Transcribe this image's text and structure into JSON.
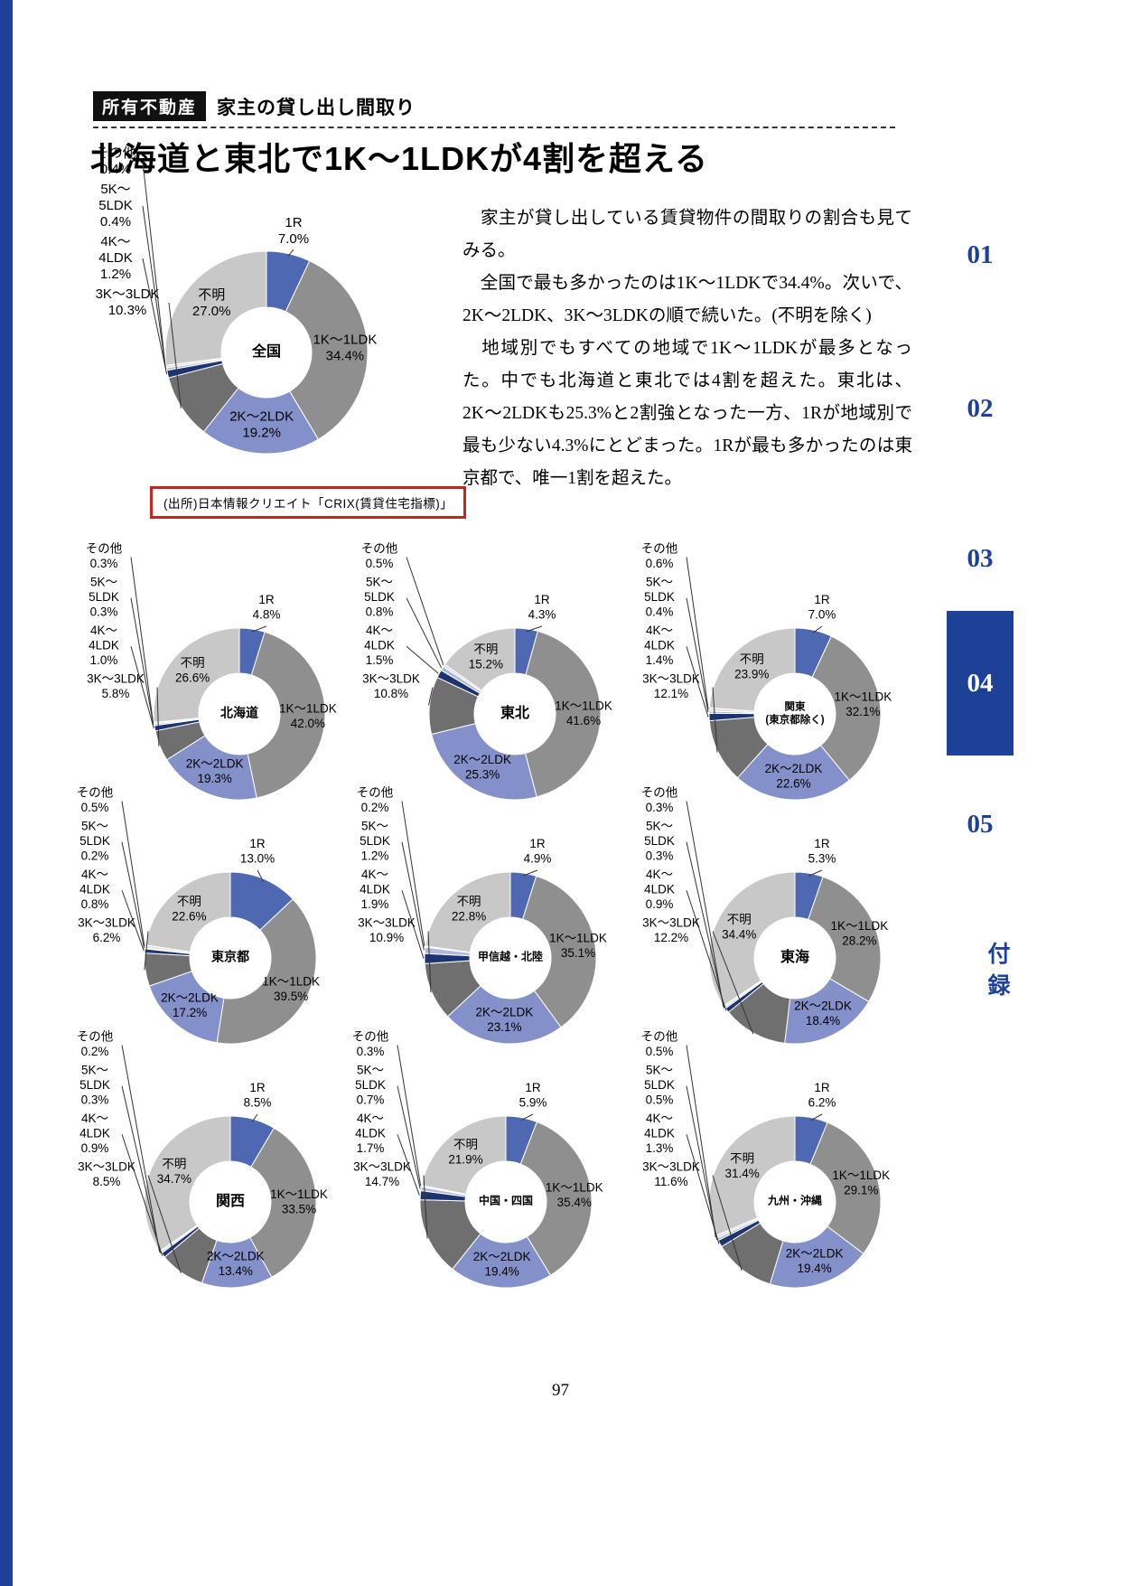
{
  "header": {
    "badge": "所有不動産",
    "subtitle": "家主の貸し出し間取り",
    "title": "北海道と東北で1K〜1LDKが4割を超える"
  },
  "source_note": "(出所)日本情報クリエイト「CRIX(賃貸住宅指標)」",
  "body_paragraphs": [
    "　家主が貸し出している賃貸物件の間取りの割合も見てみる。",
    "　全国で最も多かったのは1K〜1LDKで34.4%。次いで、2K〜2LDK、3K〜3LDKの順で続いた。(不明を除く)",
    "　地域別でもすべての地域で1K〜1LDKが最多となった。中でも北海道と東北では4割を超えた。東北は、2K〜2LDKも25.3%と2割強となった一方、1Rが地域別で最も少ない4.3%にとどまった。1Rが最も多かったのは東京都で、唯一1割を超えた。"
  ],
  "side_nav": {
    "items": [
      "01",
      "02",
      "03",
      "04",
      "05",
      "付録"
    ],
    "active": "04"
  },
  "page_number": "97",
  "chart_data": {
    "type": "pie",
    "subtype": "donut",
    "unit": "%",
    "legend_position": "none",
    "categories": [
      "1R",
      "1K〜1LDK",
      "2K〜2LDK",
      "3K〜3LDK",
      "4K〜4LDK",
      "5K〜5LDK",
      "その他",
      "不明"
    ],
    "colors": [
      "#4e68b1",
      "#8f8f8f",
      "#8490c9",
      "#6f6f6f",
      "#1d3473",
      "#b0bbdc",
      "#e2e2e2",
      "#c8c8c8"
    ],
    "charts": [
      {
        "name": "全国",
        "values": [
          7.0,
          34.4,
          19.2,
          10.3,
          1.2,
          0.4,
          0.4,
          27.0
        ]
      },
      {
        "name": "北海道",
        "values": [
          4.8,
          42.0,
          19.3,
          5.8,
          1.0,
          0.3,
          0.3,
          26.6
        ]
      },
      {
        "name": "東北",
        "values": [
          4.3,
          41.6,
          25.3,
          10.8,
          1.5,
          0.8,
          0.5,
          15.2
        ]
      },
      {
        "name": "関東(東京都除く)",
        "values": [
          7.0,
          32.1,
          22.6,
          12.1,
          1.4,
          0.4,
          0.6,
          23.9
        ]
      },
      {
        "name": "東京都",
        "values": [
          13.0,
          39.5,
          17.2,
          6.2,
          0.8,
          0.2,
          0.5,
          22.6
        ]
      },
      {
        "name": "甲信越・北陸",
        "values": [
          4.9,
          35.1,
          23.1,
          10.9,
          1.9,
          1.2,
          0.2,
          22.8
        ]
      },
      {
        "name": "東海",
        "values": [
          5.3,
          28.2,
          18.4,
          12.2,
          0.9,
          0.3,
          0.3,
          34.4
        ]
      },
      {
        "name": "関西",
        "values": [
          8.5,
          33.5,
          13.4,
          8.5,
          0.9,
          0.3,
          0.2,
          34.7
        ]
      },
      {
        "name": "中国・四国",
        "values": [
          5.9,
          35.4,
          19.4,
          14.7,
          1.7,
          0.7,
          0.3,
          21.9
        ]
      },
      {
        "name": "九州・沖縄",
        "values": [
          6.2,
          29.1,
          19.4,
          11.6,
          1.3,
          0.5,
          0.5,
          31.4
        ]
      }
    ]
  }
}
